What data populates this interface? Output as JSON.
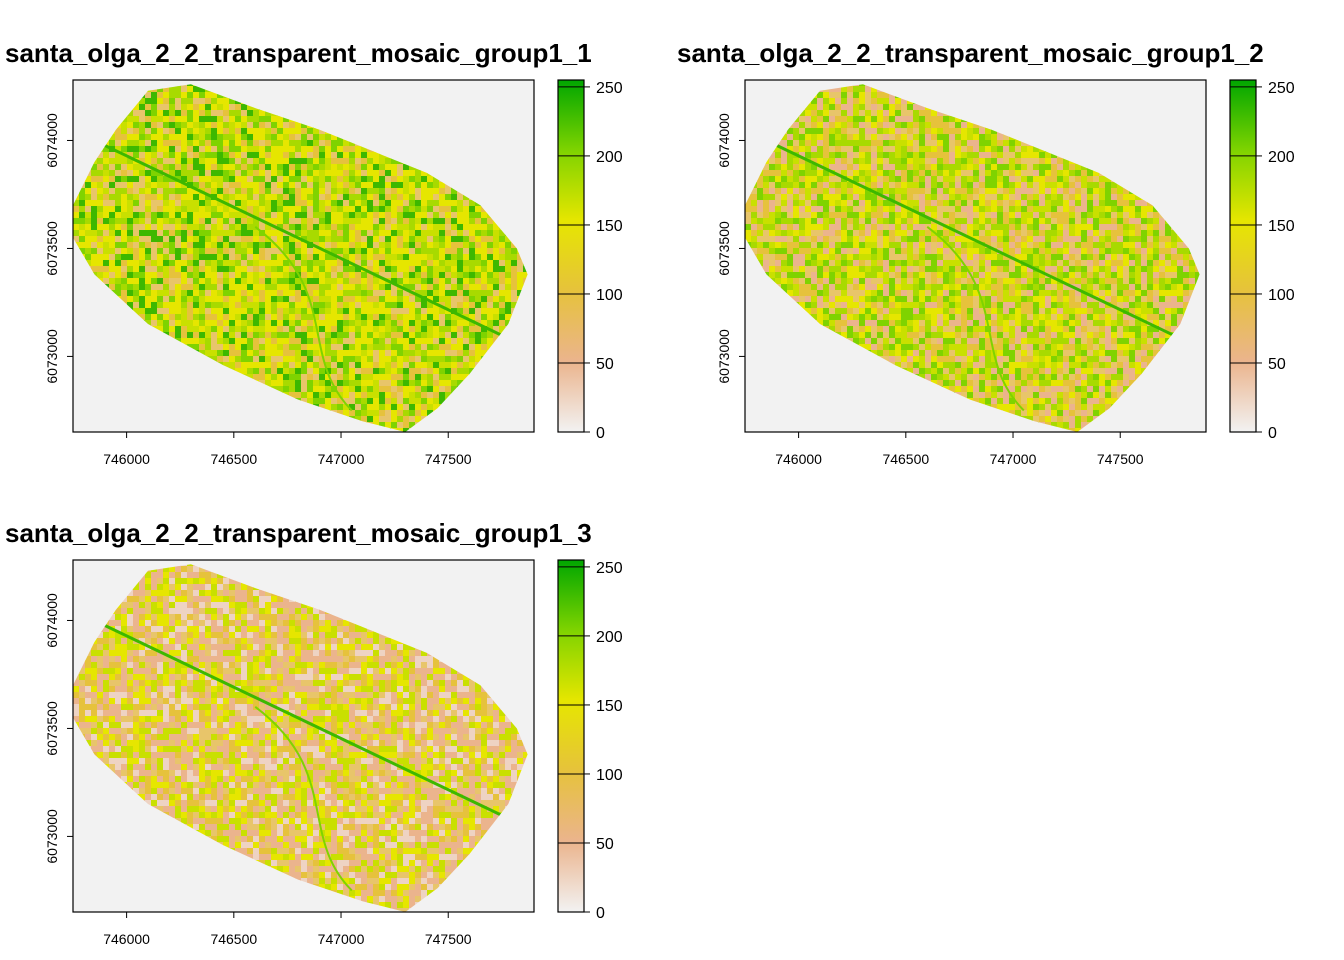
{
  "chart_data": [
    {
      "type": "heatmap",
      "title": "santa_olga_2_2_transparent_mosaic_group1_1",
      "xlim": [
        745750,
        747900
      ],
      "ylim": [
        6072650,
        6074280
      ],
      "x_ticks": [
        746000,
        746500,
        747000,
        747500
      ],
      "x_tick_labels": [
        "746000",
        "746500",
        "747000",
        "747500"
      ],
      "y_ticks": [
        6073000,
        6073500,
        6074000
      ],
      "y_tick_labels": [
        "6073000",
        "6073500",
        "6074000"
      ],
      "legend": {
        "range": [
          0,
          255
        ],
        "ticks": [
          0,
          50,
          100,
          150,
          200,
          250
        ],
        "tick_labels": [
          "0",
          "50",
          "100",
          "150",
          "200",
          "250"
        ],
        "colors": [
          "#F2F2F2",
          "#EBB48D",
          "#E6C23C",
          "#E6E600",
          "#7FD300",
          "#00A600"
        ]
      },
      "band": 1,
      "background": "#F2F2F2"
    },
    {
      "type": "heatmap",
      "title": "santa_olga_2_2_transparent_mosaic_group1_2",
      "xlim": [
        745750,
        747900
      ],
      "ylim": [
        6072650,
        6074280
      ],
      "x_ticks": [
        746000,
        746500,
        747000,
        747500
      ],
      "x_tick_labels": [
        "746000",
        "746500",
        "747000",
        "747500"
      ],
      "y_ticks": [
        6073000,
        6073500,
        6074000
      ],
      "y_tick_labels": [
        "6073000",
        "6073500",
        "6074000"
      ],
      "legend": {
        "range": [
          0,
          255
        ],
        "ticks": [
          0,
          50,
          100,
          150,
          200,
          250
        ],
        "tick_labels": [
          "0",
          "50",
          "100",
          "150",
          "200",
          "250"
        ],
        "colors": [
          "#F2F2F2",
          "#EBB48D",
          "#E6C23C",
          "#E6E600",
          "#7FD300",
          "#00A600"
        ]
      },
      "band": 2,
      "background": "#F2F2F2"
    },
    {
      "type": "heatmap",
      "title": "santa_olga_2_2_transparent_mosaic_group1_3",
      "xlim": [
        745750,
        747900
      ],
      "ylim": [
        6072650,
        6074280
      ],
      "x_ticks": [
        746000,
        746500,
        747000,
        747500
      ],
      "x_tick_labels": [
        "746000",
        "746500",
        "747000",
        "747500"
      ],
      "y_ticks": [
        6073000,
        6073500,
        6074000
      ],
      "y_tick_labels": [
        "6073000",
        "6073500",
        "6074000"
      ],
      "legend": {
        "range": [
          0,
          255
        ],
        "ticks": [
          0,
          50,
          100,
          150,
          200,
          250
        ],
        "tick_labels": [
          "0",
          "50",
          "100",
          "150",
          "200",
          "250"
        ],
        "colors": [
          "#F2F2F2",
          "#EBB48D",
          "#E6C23C",
          "#E6E600",
          "#7FD300",
          "#00A600"
        ]
      },
      "band": 3,
      "background": "#F2F2F2"
    }
  ]
}
